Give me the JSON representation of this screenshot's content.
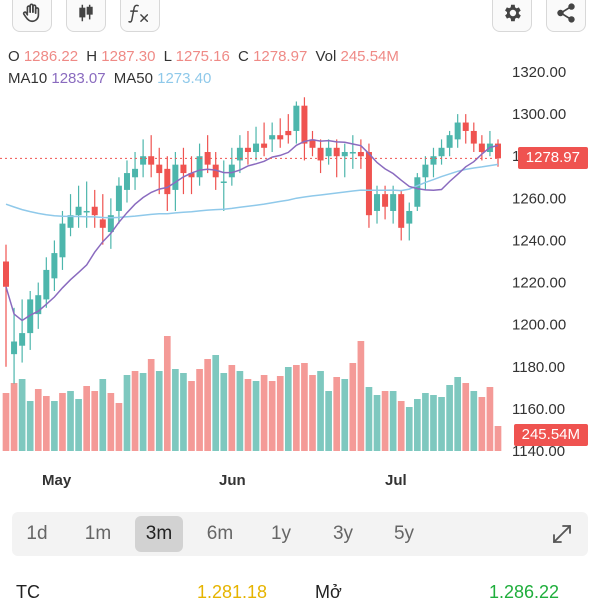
{
  "toolbar": {
    "left_tools": [
      "hand-icon",
      "candlestick-icon",
      "function-icon"
    ],
    "right_tools": [
      "gear-icon",
      "share-icon"
    ]
  },
  "ohlc": {
    "o_label": "O",
    "o": "1286.22",
    "h_label": "H",
    "h": "1287.30",
    "l_label": "L",
    "l": "1275.16",
    "c_label": "C",
    "c": "1278.97",
    "vol_label": "Vol",
    "vol": "245.54M"
  },
  "ma": {
    "ma10_label": "MA10",
    "ma10": "1283.07",
    "ma50_label": "MA50",
    "ma50": "1273.40"
  },
  "tags": {
    "last_price": "1278.97",
    "last_volume": "245.54M"
  },
  "chart_data": {
    "type": "candlestick",
    "y_ticks": [
      "1320.00",
      "1300.00",
      "1280.00",
      "1260.00",
      "1240.00",
      "1220.00",
      "1200.00",
      "1180.00",
      "1160.00",
      "1140.00"
    ],
    "ylim": [
      1140,
      1320
    ],
    "x_labels": [
      "May",
      "Jun",
      "Jul"
    ],
    "last_price": 1278.97,
    "colors": {
      "up": "#4db6ac",
      "down": "#ef5350",
      "ma10": "#8a6bbf",
      "ma50": "#8fc9ea"
    },
    "candles": [
      [
        1230,
        1218,
        1238,
        1180
      ],
      [
        1186,
        1192,
        1208,
        1172
      ],
      [
        1190,
        1196,
        1212,
        1182
      ],
      [
        1196,
        1212,
        1216,
        1188
      ],
      [
        1205,
        1214,
        1220,
        1198
      ],
      [
        1212,
        1226,
        1232,
        1208
      ],
      [
        1222,
        1234,
        1240,
        1216
      ],
      [
        1232,
        1248,
        1254,
        1226
      ],
      [
        1246,
        1252,
        1262,
        1242
      ],
      [
        1252,
        1256,
        1266,
        1246
      ],
      [
        1254,
        1254,
        1268,
        1246
      ],
      [
        1256,
        1252,
        1264,
        1246
      ],
      [
        1250,
        1246,
        1262,
        1238
      ],
      [
        1244,
        1252,
        1260,
        1236
      ],
      [
        1254,
        1266,
        1270,
        1248
      ],
      [
        1264,
        1272,
        1278,
        1258
      ],
      [
        1270,
        1274,
        1282,
        1264
      ],
      [
        1276,
        1280,
        1288,
        1270
      ],
      [
        1280,
        1276,
        1290,
        1270
      ],
      [
        1276,
        1272,
        1284,
        1262
      ],
      [
        1274,
        1262,
        1280,
        1254
      ],
      [
        1264,
        1276,
        1282,
        1254
      ],
      [
        1276,
        1272,
        1284,
        1262
      ],
      [
        1272,
        1270,
        1280,
        1262
      ],
      [
        1270,
        1280,
        1286,
        1266
      ],
      [
        1282,
        1276,
        1290,
        1272
      ],
      [
        1276,
        1270,
        1282,
        1264
      ],
      [
        1268,
        1268,
        1278,
        1254
      ],
      [
        1270,
        1276,
        1284,
        1266
      ],
      [
        1278,
        1284,
        1290,
        1272
      ],
      [
        1284,
        1282,
        1292,
        1276
      ],
      [
        1282,
        1286,
        1294,
        1278
      ],
      [
        1286,
        1284,
        1296,
        1280
      ],
      [
        1288,
        1290,
        1296,
        1282
      ],
      [
        1290,
        1288,
        1298,
        1284
      ],
      [
        1292,
        1290,
        1300,
        1286
      ],
      [
        1292,
        1304,
        1306,
        1286
      ],
      [
        1304,
        1286,
        1308,
        1278
      ],
      [
        1288,
        1284,
        1292,
        1280
      ],
      [
        1284,
        1278,
        1288,
        1272
      ],
      [
        1280,
        1284,
        1288,
        1276
      ],
      [
        1284,
        1280,
        1288,
        1270
      ],
      [
        1280,
        1282,
        1286,
        1270
      ],
      [
        1282,
        1282,
        1290,
        1274
      ],
      [
        1282,
        1280,
        1288,
        1274
      ],
      [
        1282,
        1252,
        1286,
        1246
      ],
      [
        1254,
        1262,
        1266,
        1248
      ],
      [
        1262,
        1256,
        1266,
        1250
      ],
      [
        1254,
        1262,
        1266,
        1248
      ],
      [
        1262,
        1246,
        1264,
        1240
      ],
      [
        1248,
        1254,
        1258,
        1240
      ],
      [
        1256,
        1270,
        1272,
        1254
      ],
      [
        1270,
        1276,
        1280,
        1264
      ],
      [
        1276,
        1280,
        1284,
        1270
      ],
      [
        1280,
        1284,
        1288,
        1276
      ],
      [
        1284,
        1290,
        1292,
        1280
      ],
      [
        1288,
        1296,
        1300,
        1284
      ],
      [
        1296,
        1292,
        1300,
        1286
      ],
      [
        1292,
        1286,
        1296,
        1282
      ],
      [
        1286,
        1282,
        1290,
        1278
      ],
      [
        1282,
        1286,
        1292,
        1280
      ],
      [
        1286,
        1279,
        1288,
        1275
      ]
    ],
    "volumes": [
      [
        58,
        "down"
      ],
      [
        68,
        "down"
      ],
      [
        72,
        "up"
      ],
      [
        50,
        "up"
      ],
      [
        62,
        "down"
      ],
      [
        55,
        "down"
      ],
      [
        50,
        "up"
      ],
      [
        58,
        "down"
      ],
      [
        60,
        "up"
      ],
      [
        52,
        "up"
      ],
      [
        65,
        "down"
      ],
      [
        60,
        "down"
      ],
      [
        72,
        "up"
      ],
      [
        58,
        "down"
      ],
      [
        48,
        "down"
      ],
      [
        76,
        "up"
      ],
      [
        80,
        "down"
      ],
      [
        78,
        "up"
      ],
      [
        92,
        "down"
      ],
      [
        80,
        "up"
      ],
      [
        115,
        "down"
      ],
      [
        82,
        "up"
      ],
      [
        78,
        "up"
      ],
      [
        70,
        "down"
      ],
      [
        82,
        "down"
      ],
      [
        92,
        "down"
      ],
      [
        96,
        "up"
      ],
      [
        78,
        "up"
      ],
      [
        86,
        "down"
      ],
      [
        80,
        "up"
      ],
      [
        72,
        "down"
      ],
      [
        70,
        "up"
      ],
      [
        76,
        "down"
      ],
      [
        70,
        "down"
      ],
      [
        75,
        "down"
      ],
      [
        84,
        "up"
      ],
      [
        86,
        "down"
      ],
      [
        88,
        "down"
      ],
      [
        76,
        "down"
      ],
      [
        80,
        "up"
      ],
      [
        60,
        "up"
      ],
      [
        74,
        "down"
      ],
      [
        72,
        "up"
      ],
      [
        88,
        "down"
      ],
      [
        110,
        "down"
      ],
      [
        64,
        "up"
      ],
      [
        56,
        "up"
      ],
      [
        60,
        "down"
      ],
      [
        60,
        "up"
      ],
      [
        50,
        "down"
      ],
      [
        44,
        "up"
      ],
      [
        52,
        "up"
      ],
      [
        58,
        "up"
      ],
      [
        56,
        "up"
      ],
      [
        54,
        "up"
      ],
      [
        66,
        "up"
      ],
      [
        74,
        "up"
      ],
      [
        68,
        "down"
      ],
      [
        60,
        "up"
      ],
      [
        54,
        "down"
      ],
      [
        64,
        "down"
      ],
      [
        25,
        "down"
      ]
    ]
  },
  "periods": [
    {
      "label": "1d",
      "active": false
    },
    {
      "label": "1m",
      "active": false
    },
    {
      "label": "3m",
      "active": true
    },
    {
      "label": "6m",
      "active": false
    },
    {
      "label": "1y",
      "active": false
    },
    {
      "label": "3y",
      "active": false
    },
    {
      "label": "5y",
      "active": false
    }
  ],
  "footer": {
    "tc_label": "TC",
    "tc_value": "1.281.18",
    "open_label": "Mở",
    "open_value": "1.286.22"
  }
}
